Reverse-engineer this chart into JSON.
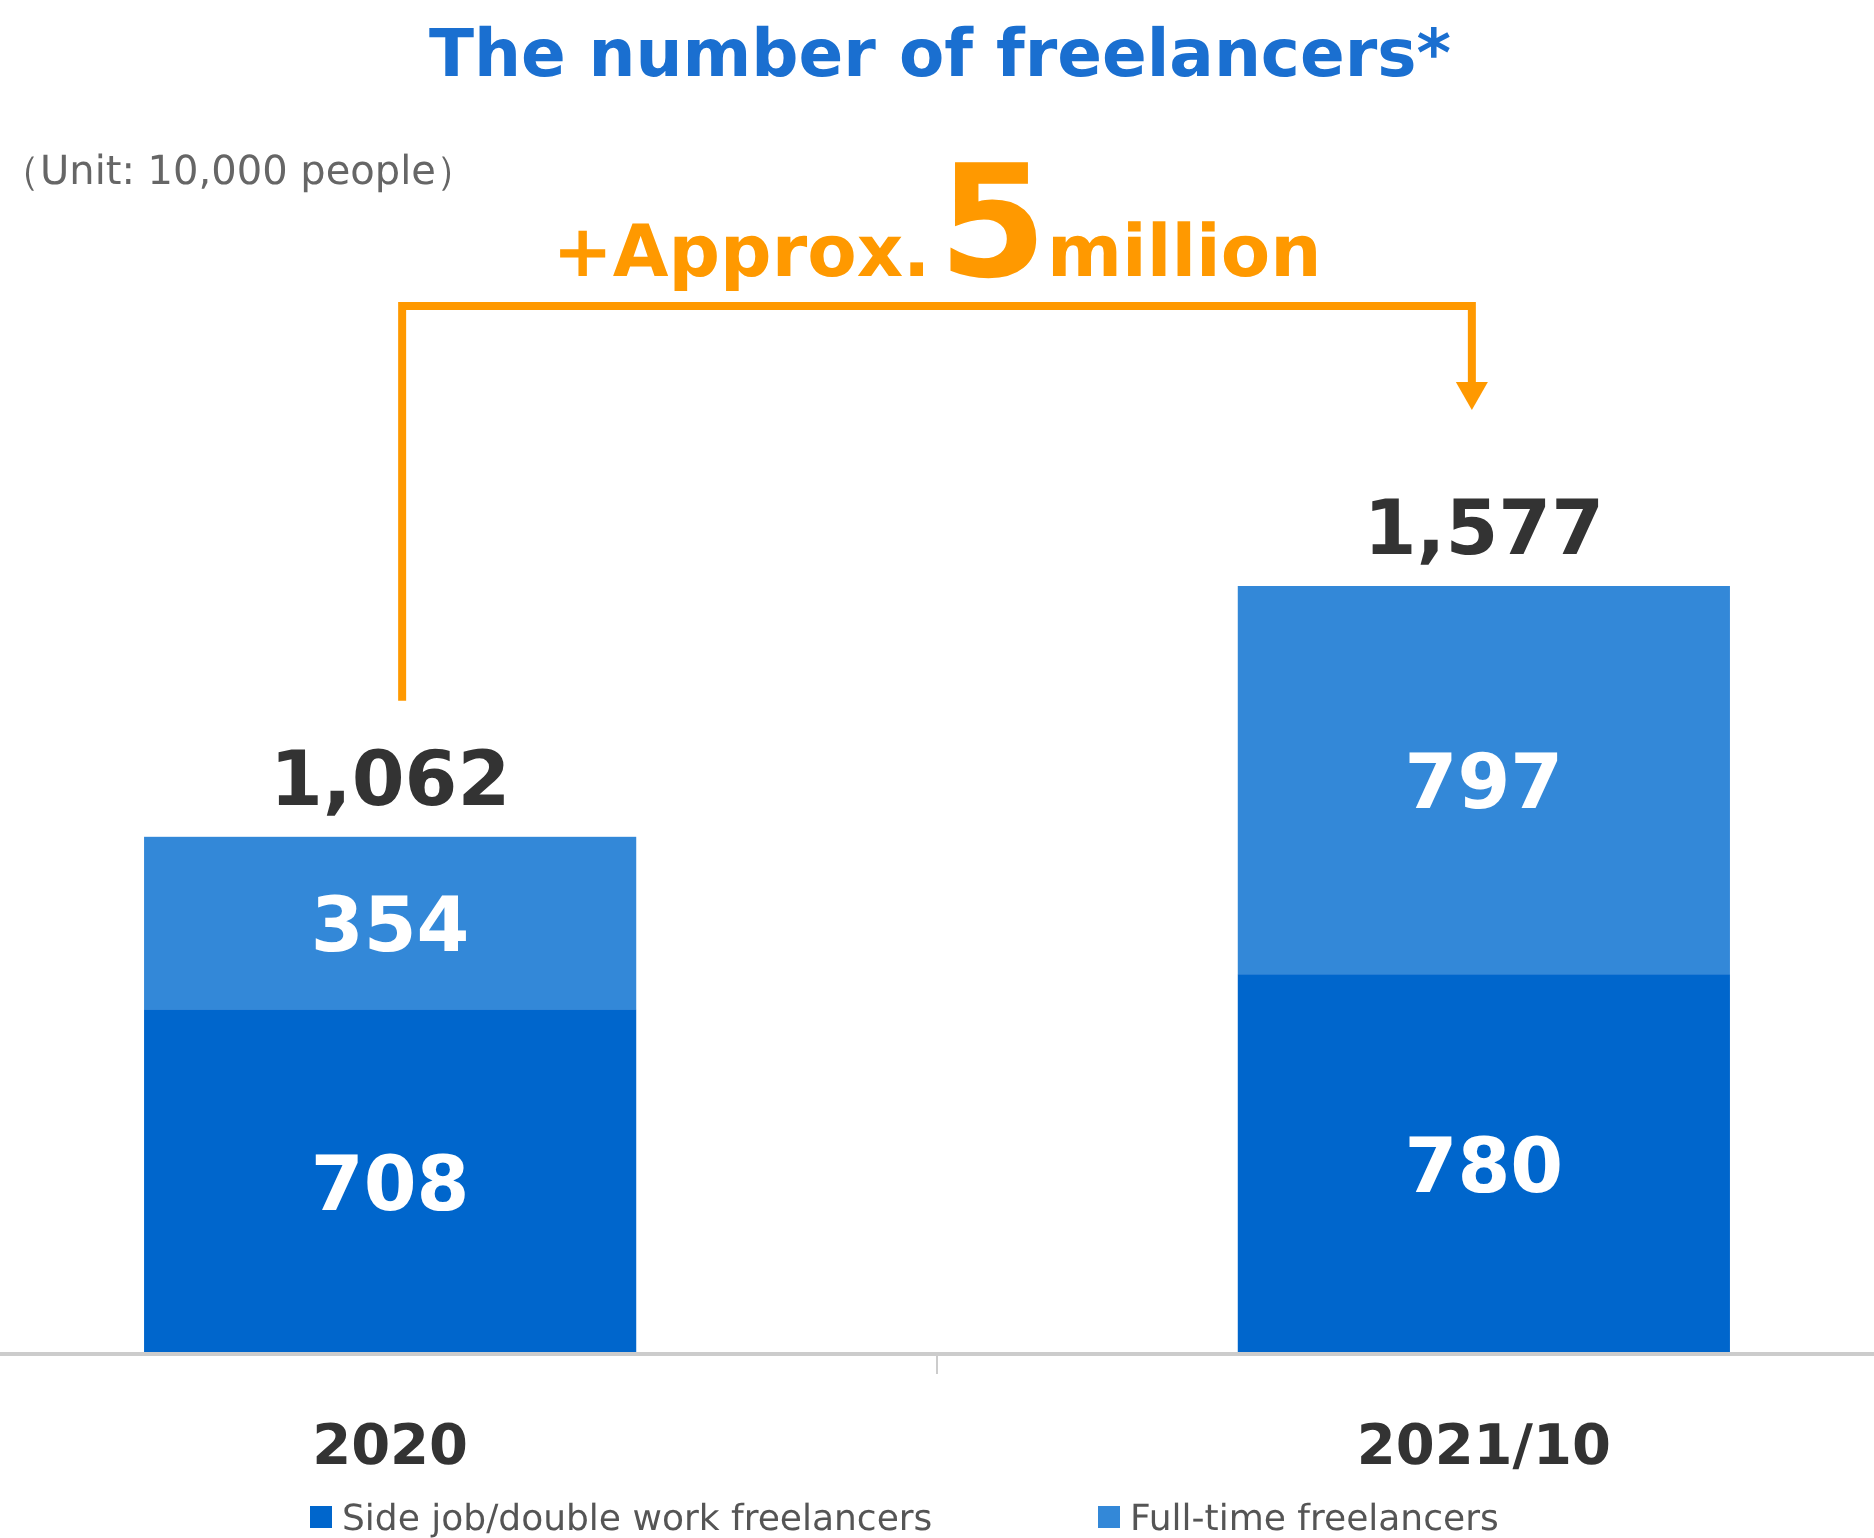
{
  "chart_data": {
    "type": "bar",
    "title": "The number of freelancers*",
    "subtitle": "（Unit: 10,000 people）",
    "annotations": [
      "+Approx.5million"
    ],
    "categories": [
      "2020",
      "2021/10"
    ],
    "stacked": true,
    "series": [
      {
        "name": "Side job/double work freelancers",
        "color": "#0066cc",
        "values": [
          708,
          780
        ]
      },
      {
        "name": "Full-time freelancers",
        "color": "#3388d8",
        "values": [
          354,
          797
        ]
      }
    ],
    "totals": [
      "1,062",
      "1,577"
    ],
    "data_labels": true,
    "legend": "bottom"
  }
}
